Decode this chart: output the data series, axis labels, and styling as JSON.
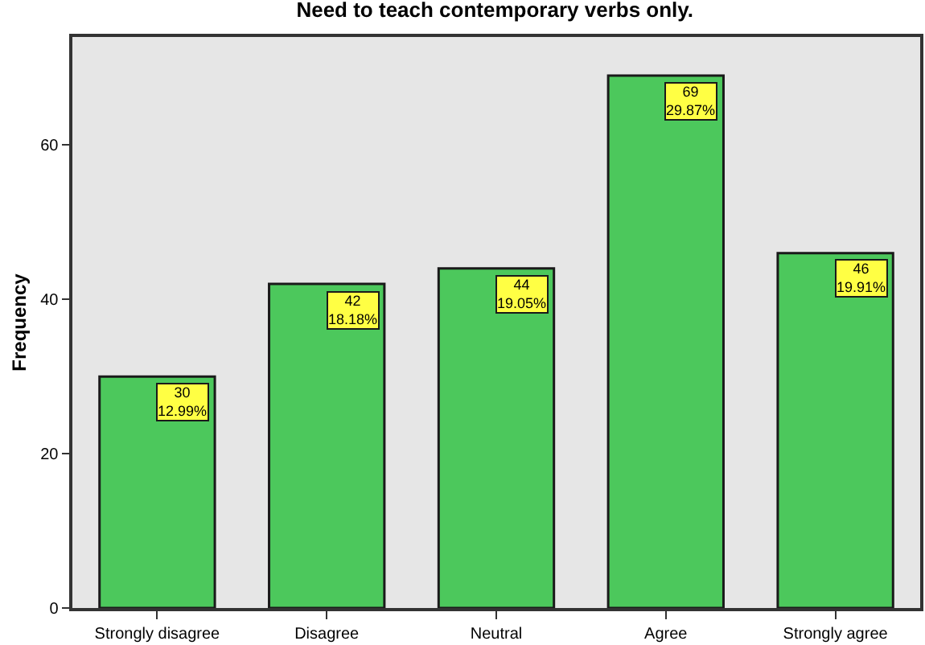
{
  "chart_data": {
    "type": "bar",
    "title": "Need to teach contemporary verbs only.",
    "ylabel": "Frequency",
    "categories": [
      "Strongly disagree",
      "Disagree",
      "Neutral",
      "Agree",
      "Strongly agree"
    ],
    "values": [
      30,
      42,
      44,
      69,
      46
    ],
    "color": "#4cc85c",
    "value_labels": [
      "30\n12.99%",
      "42\n18.18%",
      "44\n19.05%",
      "69\n29.87%",
      "46\n19.91%"
    ],
    "ylim": [
      0,
      74
    ],
    "yticks": [
      0,
      20,
      40,
      60
    ]
  }
}
